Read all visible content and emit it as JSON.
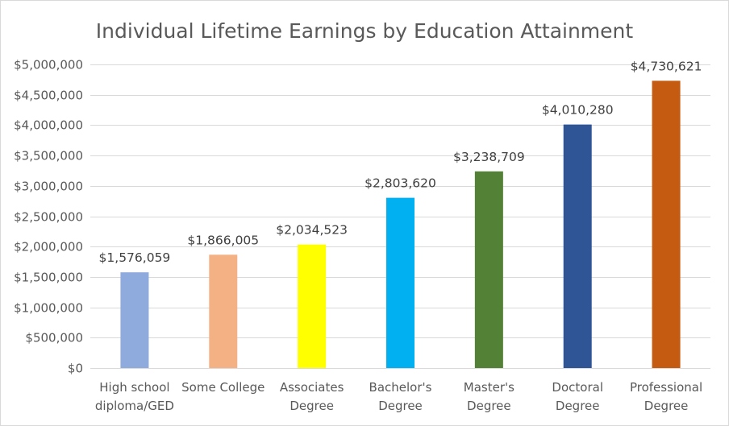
{
  "chart_data": {
    "type": "bar",
    "title": "Individual Lifetime Earnings by Education Attainment",
    "categories": [
      [
        "High school",
        "diploma/GED"
      ],
      [
        "Some College"
      ],
      [
        "Associates",
        "Degree"
      ],
      [
        "Bachelor's",
        "Degree"
      ],
      [
        "Master's",
        "Degree"
      ],
      [
        "Doctoral",
        "Degree"
      ],
      [
        "Professional",
        "Degree"
      ]
    ],
    "values": [
      1576059,
      1866005,
      2034523,
      2803620,
      3238709,
      4010280,
      4730621
    ],
    "data_labels": [
      "$1,576,059",
      "$1,866,005",
      "$2,034,523",
      "$2,803,620",
      "$3,238,709",
      "$4,010,280",
      "$4,730,621"
    ],
    "colors": [
      "#8faadc",
      "#f4b183",
      "#ffff00",
      "#00b0f0",
      "#538135",
      "#2f5597",
      "#c55a11"
    ],
    "ylim": [
      0,
      5000000
    ],
    "yticks": [
      0,
      500000,
      1000000,
      1500000,
      2000000,
      2500000,
      3000000,
      3500000,
      4000000,
      4500000,
      5000000
    ],
    "ytick_labels": [
      "$0",
      "$500,000",
      "$1,000,000",
      "$1,500,000",
      "$2,000,000",
      "$2,500,000",
      "$3,000,000",
      "$3,500,000",
      "$4,000,000",
      "$4,500,000",
      "$5,000,000"
    ],
    "grid": true,
    "legend": "none",
    "xlabel": "",
    "ylabel": ""
  }
}
